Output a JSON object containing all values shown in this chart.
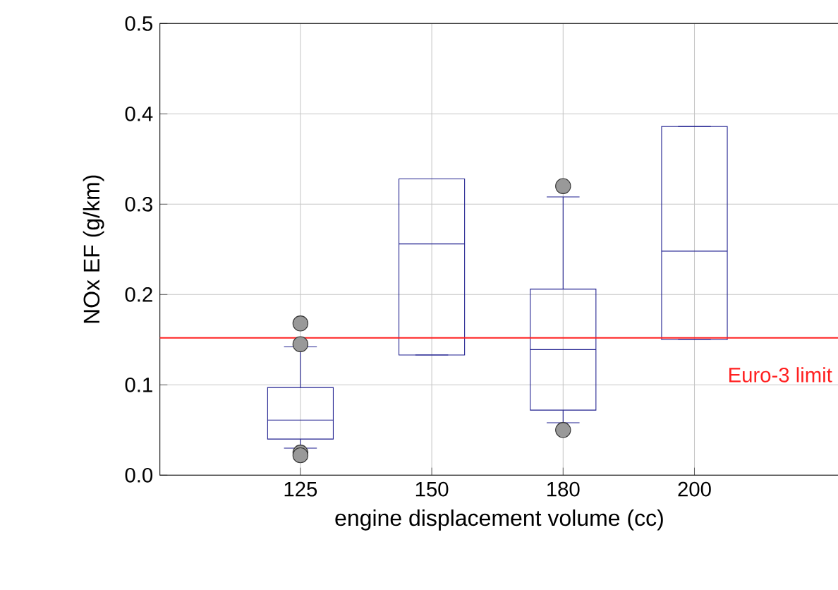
{
  "chart_data": {
    "type": "box",
    "xlabel": "engine displacement volume (cc)",
    "ylabel": "NOx EF (g/km)",
    "categories": [
      "125",
      "150",
      "180",
      "200"
    ],
    "color": "#1f1f8f",
    "boxes": [
      {
        "low": 0.03,
        "q1": 0.04,
        "median": 0.061,
        "q3": 0.097,
        "high": 0.142,
        "outliers": [
          0.168,
          0.145,
          0.025,
          0.022
        ]
      },
      {
        "low": 0.133,
        "q1": 0.133,
        "median": 0.256,
        "q3": 0.328,
        "high": 0.328
      },
      {
        "low": 0.058,
        "q1": 0.072,
        "median": 0.139,
        "q3": 0.206,
        "high": 0.308,
        "outliers": [
          0.32,
          0.05
        ]
      },
      {
        "low": 0.15,
        "q1": 0.15,
        "median": 0.248,
        "q3": 0.386,
        "high": 0.386
      }
    ],
    "ylim": [
      0,
      0.5
    ],
    "yticks": [
      {
        "value": 0,
        "label": "0.0"
      },
      {
        "value": 0.1,
        "label": "0.1"
      },
      {
        "value": 0.2,
        "label": "0.2"
      },
      {
        "value": 0.3,
        "label": "0.3"
      },
      {
        "value": 0.4,
        "label": "0.4"
      },
      {
        "value": 0.5,
        "label": "0.5"
      }
    ],
    "grid": true,
    "ref_lines": [
      {
        "axis": "y",
        "value": 0.152,
        "label": "Euro-3 limit",
        "color": "#ff2020"
      }
    ]
  }
}
